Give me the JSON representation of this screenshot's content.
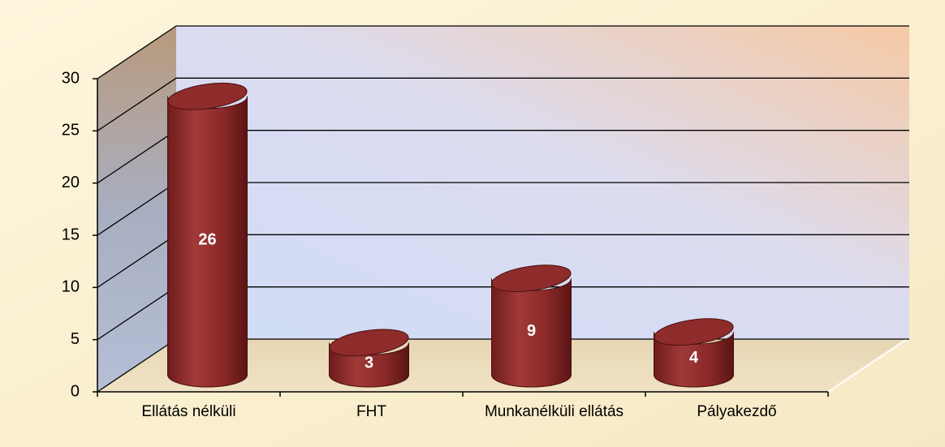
{
  "chart_data": {
    "type": "bar3d",
    "categories": [
      "Ellátás nélküli",
      "FHT",
      "Munkanélküli ellátás",
      "Pályakezdő"
    ],
    "values": [
      26,
      3,
      9,
      4
    ],
    "color": "#8e2b2b",
    "ylim": [
      0,
      30
    ],
    "yticks": [
      0,
      5,
      10,
      15,
      20,
      25,
      30
    ],
    "grid": true
  }
}
